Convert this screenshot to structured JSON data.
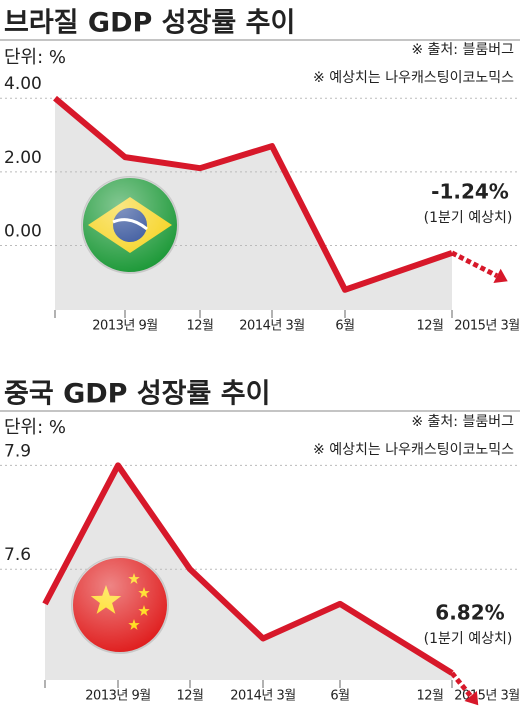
{
  "chart_data": [
    {
      "type": "line",
      "title": "브라질 GDP 성장률 추이",
      "unit": "단위: %",
      "source": "※ 출처: 블룸버그",
      "note": "※ 예상치는 나우캐스팅이코노믹스",
      "categories": [
        null,
        "2013년 9월",
        "12월",
        "2014년 3월",
        "6월",
        "12월"
      ],
      "values": [
        4.0,
        2.4,
        2.1,
        2.7,
        -1.2,
        -0.2
      ],
      "color": "#d7182a",
      "forecast": {
        "category": "2015년 3월",
        "value": -1.24,
        "label": "-1.24%",
        "caption": "(1분기 예상치)"
      },
      "ylim": [
        -1.75,
        4.25
      ],
      "yticks": [
        {
          "value": 4,
          "label": "4.00"
        },
        {
          "value": 2,
          "label": "2.00"
        },
        {
          "value": 0,
          "label": "0.00"
        }
      ]
    },
    {
      "type": "line",
      "title": "중국 GDP 성장률 추이",
      "unit": "단위: %",
      "source": "※ 출처: 블룸버그",
      "note": "※ 예상치는 나우캐스팅이코노믹스",
      "categories": [
        null,
        "2013년 9월",
        "12월",
        "2014년 3월",
        "6월",
        "12월"
      ],
      "values": [
        7.5,
        7.9,
        7.6,
        7.4,
        7.5,
        7.3
      ],
      "color": "#d7182a",
      "forecast": {
        "category": "2015년 3월",
        "value": 6.82,
        "label": "6.82%",
        "caption": "(1분기 예상치)"
      },
      "ylim": [
        7.28,
        7.93
      ],
      "yticks": [
        7.9,
        7.6
      ]
    }
  ]
}
